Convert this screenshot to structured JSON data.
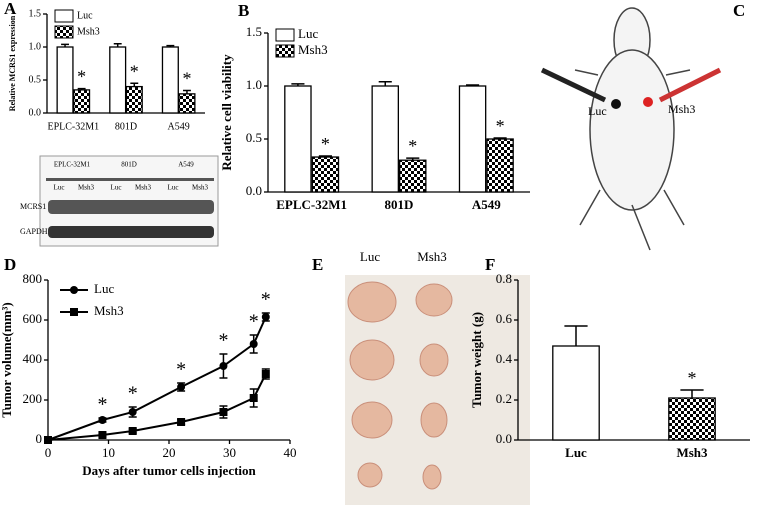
{
  "chart_data": [
    {
      "type": "bar",
      "panel": "A",
      "ylabel": "Relative MCRS1 expression",
      "categories": [
        "EPLC-32M1",
        "801D",
        "A549"
      ],
      "series": [
        {
          "name": "Luc",
          "color": "#ffffff",
          "pattern": "solid",
          "values": [
            1.0,
            1.0,
            1.0
          ],
          "errors": [
            0.04,
            0.05,
            0.02
          ]
        },
        {
          "name": "Msh3",
          "color": "#000000",
          "pattern": "checkerboard",
          "values": [
            0.35,
            0.4,
            0.29
          ],
          "errors": [
            0.02,
            0.05,
            0.05
          ],
          "annotations": [
            "*",
            "*",
            "*"
          ]
        }
      ],
      "ylim": [
        0,
        1.5
      ],
      "yticks": [
        {
          "value": 0,
          "label": "0.0"
        },
        0.5,
        {
          "value": 1,
          "label": "1.0"
        },
        1.5
      ],
      "legend": "upper left"
    },
    {
      "type": "bar",
      "panel": "B",
      "ylabel": "Relative cell viability",
      "categories": [
        "EPLC-32M1",
        "801D",
        "A549"
      ],
      "series": [
        {
          "name": "Luc",
          "color": "#ffffff",
          "pattern": "solid",
          "values": [
            1.0,
            1.0,
            1.0
          ],
          "errors": [
            0.02,
            0.04,
            0.01
          ]
        },
        {
          "name": "Msh3",
          "color": "#000000",
          "pattern": "checkerboard",
          "values": [
            0.33,
            0.3,
            0.5
          ],
          "errors": [
            0.01,
            0.02,
            0.01
          ],
          "annotations": [
            "*",
            "*",
            "*"
          ]
        }
      ],
      "ylim": [
        0,
        1.5
      ],
      "yticks": [
        {
          "value": 0,
          "label": "0.0"
        },
        0.5,
        {
          "value": 1,
          "label": "1.0"
        },
        1.5
      ],
      "legend": "upper left"
    },
    {
      "type": "line",
      "panel": "D",
      "ylabel": "Tumor volume(mm³)",
      "xlabel": "Days after tumor cells injection",
      "x": [
        0,
        9,
        14,
        22,
        29,
        34,
        36
      ],
      "series": [
        {
          "name": "Luc",
          "color": "#000000",
          "marker": "circle",
          "values": [
            0,
            100,
            140,
            265,
            370,
            480,
            615
          ],
          "errors": [
            0,
            10,
            25,
            20,
            60,
            45,
            20
          ],
          "annotations": [
            null,
            "*",
            "*",
            "*",
            "*",
            "*",
            "*"
          ]
        },
        {
          "name": "Msh3",
          "color": "#000000",
          "marker": "square",
          "values": [
            0,
            25,
            45,
            90,
            140,
            210,
            330
          ],
          "errors": [
            0,
            8,
            10,
            12,
            30,
            45,
            25
          ]
        }
      ],
      "xlim": [
        0,
        40
      ],
      "xticks": [
        0,
        10,
        20,
        30,
        40
      ],
      "ylim": [
        0,
        800
      ],
      "yticks": [
        0,
        200,
        400,
        600,
        800
      ],
      "legend": "upper left"
    },
    {
      "type": "bar",
      "panel": "F",
      "ylabel": "Tumor weight (g)",
      "categories": [
        "Luc",
        "Msh3"
      ],
      "values": [
        0.47,
        0.21
      ],
      "errors": [
        0.1,
        0.04
      ],
      "annotations": [
        null,
        "*"
      ],
      "color": "#ffffff",
      "patterns": [
        "solid",
        "checkerboard"
      ],
      "ylim": [
        0,
        0.8
      ],
      "yticks": [
        {
          "value": 0,
          "label": "0.0"
        },
        0.2,
        0.4,
        0.6,
        0.8
      ]
    }
  ],
  "blot": {
    "cell_lines": [
      "EPLC-32M1",
      "801D",
      "A549"
    ],
    "lanes": [
      "Luc",
      "Msh3"
    ],
    "rows": [
      "MCRS1",
      "GAPDH"
    ]
  },
  "mouse": {
    "panel": "C",
    "labels": [
      "Luc",
      "Msh3"
    ]
  },
  "photo": {
    "panel": "E",
    "labels": [
      "Luc",
      "Msh3"
    ]
  }
}
